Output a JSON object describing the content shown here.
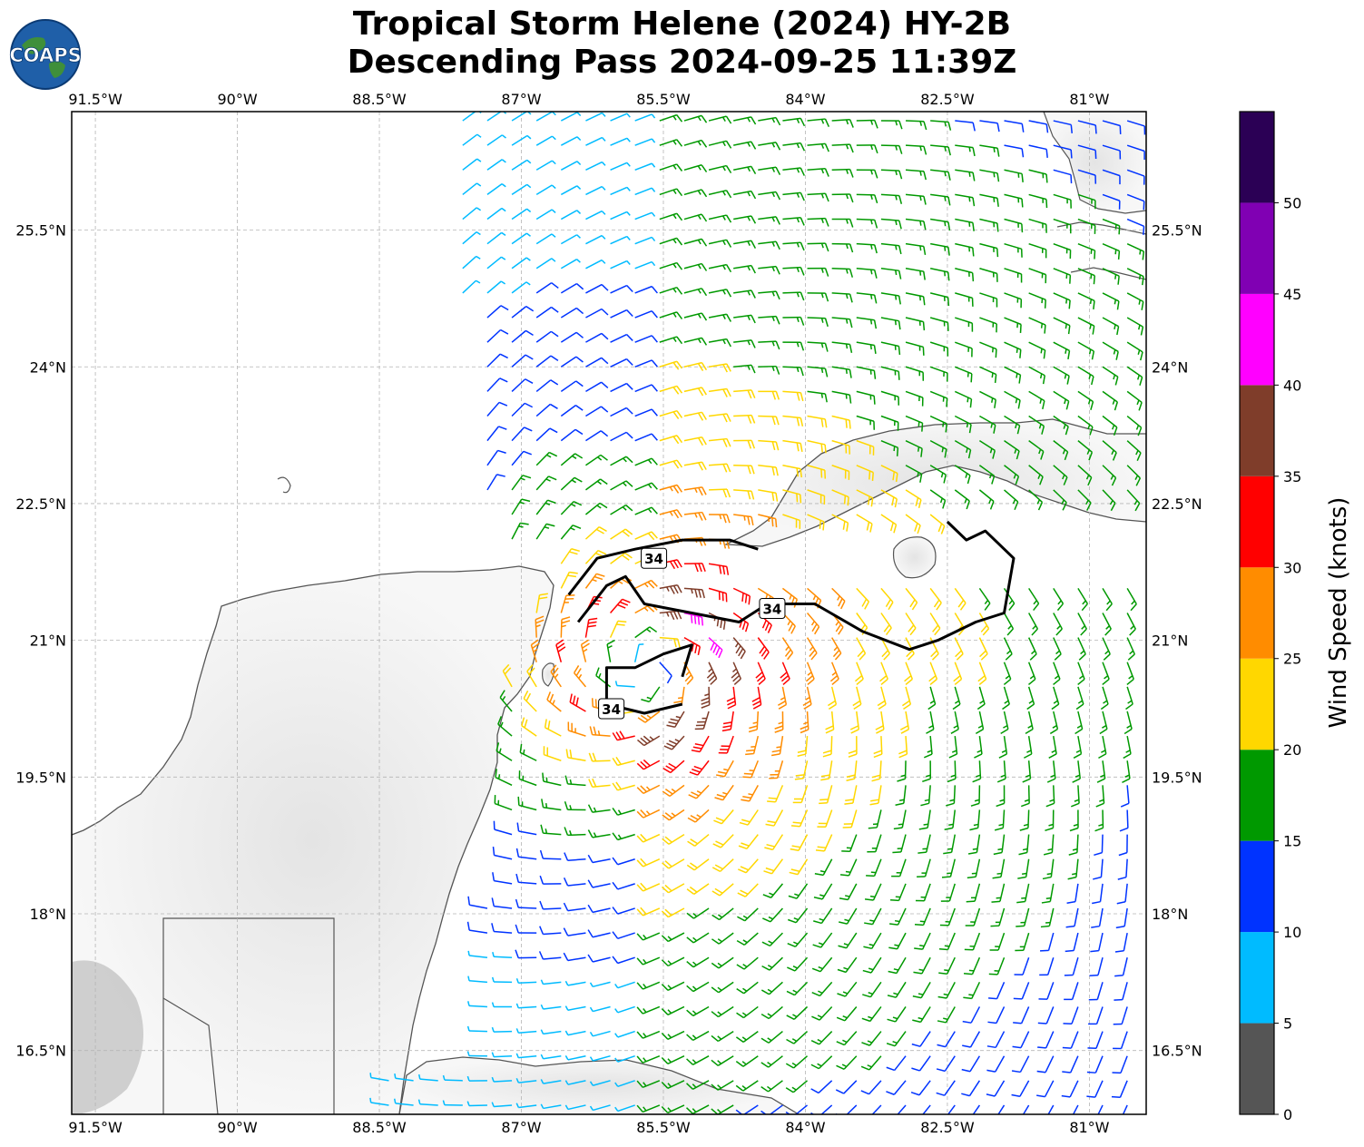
{
  "title": {
    "line1": "Tropical Storm Helene (2024) HY-2B",
    "line2": "Descending Pass 2024-09-25 11:39Z"
  },
  "logo": {
    "text": "COAPS",
    "icon": "globe-icon"
  },
  "map": {
    "lon_range": [
      -91.75,
      -80.4
    ],
    "lat_range": [
      15.8,
      26.8
    ],
    "lon_ticks": [
      {
        "value": -91.5,
        "label": "91.5°W"
      },
      {
        "value": -90,
        "label": "90°W"
      },
      {
        "value": -88.5,
        "label": "88.5°W"
      },
      {
        "value": -87,
        "label": "87°W"
      },
      {
        "value": -85.5,
        "label": "85.5°W"
      },
      {
        "value": -84,
        "label": "84°W"
      },
      {
        "value": -82.5,
        "label": "82.5°W"
      },
      {
        "value": -81,
        "label": "81°W"
      }
    ],
    "lat_ticks": [
      {
        "value": 25.5,
        "label": "25.5°N"
      },
      {
        "value": 24,
        "label": "24°N"
      },
      {
        "value": 22.5,
        "label": "22.5°N"
      },
      {
        "value": 21,
        "label": "21°N"
      },
      {
        "value": 19.5,
        "label": "19.5°N"
      },
      {
        "value": 18,
        "label": "18°N"
      },
      {
        "value": 16.5,
        "label": "16.5°N"
      }
    ],
    "grid": true,
    "storm_center": {
      "lon": -85.7,
      "lat": 20.7
    },
    "contour_label": "34",
    "contour_labels": [
      {
        "lon": -85.6,
        "lat": 21.9,
        "text": "34"
      },
      {
        "lon": -84.35,
        "lat": 21.35,
        "text": "34"
      },
      {
        "lon": -86.05,
        "lat": 20.25,
        "text": "34"
      }
    ],
    "contour_lines": [
      [
        [
          -86.5,
          21.5
        ],
        [
          -86.2,
          21.9
        ],
        [
          -85.8,
          22.0
        ],
        [
          -85.3,
          22.1
        ],
        [
          -84.8,
          22.1
        ],
        [
          -84.5,
          22.0
        ]
      ],
      [
        [
          -86.4,
          21.2
        ],
        [
          -86.1,
          21.6
        ],
        [
          -85.9,
          21.7
        ],
        [
          -85.7,
          21.4
        ],
        [
          -85.2,
          21.3
        ],
        [
          -84.7,
          21.2
        ],
        [
          -84.4,
          21.4
        ],
        [
          -83.9,
          21.4
        ],
        [
          -83.4,
          21.1
        ],
        [
          -82.9,
          20.9
        ],
        [
          -82.6,
          21.0
        ],
        [
          -82.2,
          21.2
        ],
        [
          -81.9,
          21.3
        ],
        [
          -81.8,
          21.9
        ],
        [
          -82.1,
          22.2
        ],
        [
          -82.3,
          22.1
        ],
        [
          -82.5,
          22.3
        ]
      ],
      [
        [
          -85.3,
          20.6
        ],
        [
          -85.2,
          20.95
        ],
        [
          -85.5,
          20.85
        ],
        [
          -85.8,
          20.7
        ],
        [
          -86.1,
          20.7
        ],
        [
          -86.1,
          20.3
        ],
        [
          -85.7,
          20.2
        ],
        [
          -85.3,
          20.3
        ]
      ]
    ]
  },
  "wind_legend": {
    "title": "Wind Speed (knots)",
    "ticks": [
      "0",
      "5",
      "10",
      "15",
      "20",
      "25",
      "30",
      "35",
      "40",
      "45",
      "50"
    ],
    "max": 55,
    "colors": [
      "#555555",
      "#00bbff",
      "#0033ff",
      "#009900",
      "#ffd700",
      "#ff8c00",
      "#ff0000",
      "#7f3d2a",
      "#ff00ff",
      "#8000b3",
      "#2b0055"
    ]
  }
}
